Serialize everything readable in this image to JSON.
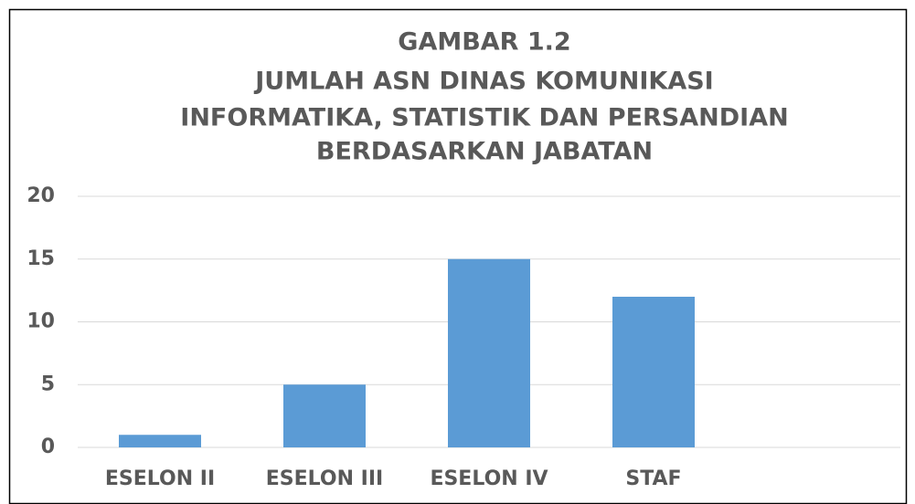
{
  "chart_data": {
    "type": "bar",
    "title": [
      "GAMBAR 1.2",
      "JUMLAH ASN DINAS KOMUNIKASI",
      "INFORMATIKA, STATISTIK DAN PERSANDIAN",
      "BERDASARKAN JABATAN"
    ],
    "categories": [
      "ESELON II",
      "ESELON III",
      "ESELON IV",
      "STAF",
      null
    ],
    "values": [
      1,
      5,
      15,
      12,
      null
    ],
    "color": "#5b9bd5",
    "ylim": [
      0,
      20
    ],
    "yticks": [
      0,
      5,
      10,
      15,
      20
    ],
    "grid": true
  }
}
